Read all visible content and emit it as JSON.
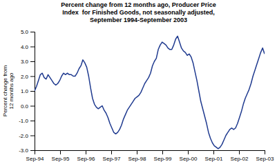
{
  "chart_data": {
    "type": "line",
    "title": "Percent change from 12 months ago, Producer Price\nIndex  for Finished Goods, not seasonally adjusted,\nSeptember 1994-September 2003",
    "ylabel": "Percent change from\n12 months ago",
    "color": "#1f3a8f",
    "xlim": [
      0,
      9
    ],
    "xticks": [
      {
        "value": 0,
        "label": "Sep-94"
      },
      {
        "value": 1,
        "label": "Sep-95"
      },
      {
        "value": 2,
        "label": "Sep-96"
      },
      {
        "value": 3,
        "label": "Sep-97"
      },
      {
        "value": 4,
        "label": "Sep-98"
      },
      {
        "value": 5,
        "label": "Sep-99"
      },
      {
        "value": 6,
        "label": "Sep-00"
      },
      {
        "value": 7,
        "label": "Sep-01"
      },
      {
        "value": 8,
        "label": "Sep-02"
      },
      {
        "value": 9,
        "label": "Sep-03"
      }
    ],
    "ylim": [
      -3.0,
      5.0
    ],
    "yticks": [
      {
        "value": -3.0,
        "label": "-3.0"
      },
      {
        "value": -2.0,
        "label": "-2.0"
      },
      {
        "value": -1.0,
        "label": "-1.0"
      },
      {
        "value": 0.0,
        "label": "0.0"
      },
      {
        "value": 1.0,
        "label": "1.0"
      },
      {
        "value": 2.0,
        "label": "2.0"
      },
      {
        "value": 3.0,
        "label": "3.0"
      },
      {
        "value": 4.0,
        "label": "4.0"
      },
      {
        "value": 5.0,
        "label": "5.0"
      }
    ],
    "x": [
      0,
      0.07563,
      0.151261,
      0.226891,
      0.302521,
      0.378151,
      0.453782,
      0.529412,
      0.605042,
      0.680672,
      0.756303,
      0.831933,
      0.907563,
      0.983193,
      1.058824,
      1.134454,
      1.210084,
      1.285714,
      1.361345,
      1.436975,
      1.512605,
      1.588235,
      1.663866,
      1.739496,
      1.815126,
      1.890756,
      1.966387,
      2.042017,
      2.117647,
      2.193277,
      2.268908,
      2.344538,
      2.420168,
      2.495798,
      2.571429,
      2.647059,
      2.722689,
      2.798319,
      2.87395,
      2.94958,
      3.02521,
      3.10084,
      3.176471,
      3.252101,
      3.327731,
      3.403361,
      3.478992,
      3.554622,
      3.630252,
      3.705882,
      3.781513,
      3.857143,
      3.932773,
      4.008403,
      4.084034,
      4.159664,
      4.235294,
      4.310924,
      4.386555,
      4.462185,
      4.537815,
      4.613445,
      4.689076,
      4.764706,
      4.840336,
      4.915966,
      4.991597,
      5.067227,
      5.142857,
      5.218487,
      5.294118,
      5.369748,
      5.445378,
      5.521008,
      5.596639,
      5.672269,
      5.747899,
      5.823529,
      5.89916,
      5.97479,
      6.05042,
      6.12605,
      6.201681,
      6.277311,
      6.352941,
      6.428571,
      6.504202,
      6.579832,
      6.655462,
      6.731092,
      6.806723,
      6.882353,
      6.957983,
      7.033613,
      7.109244,
      7.184874,
      7.260504,
      7.336134,
      7.411765,
      7.487395,
      7.563025,
      7.638655,
      7.714286,
      7.789916,
      7.865546,
      7.941176,
      8.016807,
      8.092437,
      8.168067,
      8.243697,
      8.319328,
      8.394958,
      8.470588,
      8.546218,
      8.621849,
      8.697479,
      8.773109,
      8.848739,
      8.92437,
      9
    ],
    "values": [
      1.0,
      1.3,
      1.7,
      2.1,
      2.2,
      1.9,
      1.8,
      2.1,
      1.9,
      1.7,
      1.5,
      1.4,
      1.5,
      1.7,
      2.0,
      2.2,
      2.1,
      2.2,
      2.1,
      2.1,
      2.0,
      2.0,
      2.2,
      2.5,
      2.7,
      3.1,
      2.9,
      2.6,
      2.0,
      1.2,
      0.5,
      0.1,
      -0.1,
      -0.2,
      -0.1,
      0.0,
      -0.3,
      -0.5,
      -0.8,
      -1.2,
      -1.5,
      -1.8,
      -1.9,
      -1.8,
      -1.6,
      -1.3,
      -0.9,
      -0.6,
      -0.3,
      -0.1,
      0.1,
      0.3,
      0.5,
      0.6,
      0.7,
      0.9,
      1.2,
      1.5,
      1.7,
      1.9,
      2.2,
      2.7,
      3.0,
      3.2,
      3.8,
      4.1,
      4.3,
      4.2,
      4.1,
      3.9,
      3.8,
      3.8,
      4.1,
      4.5,
      4.7,
      4.3,
      3.9,
      3.7,
      3.6,
      3.4,
      3.5,
      3.3,
      2.9,
      2.3,
      1.7,
      1.0,
      0.3,
      -0.2,
      -0.7,
      -1.2,
      -1.8,
      -2.2,
      -2.5,
      -2.7,
      -2.8,
      -2.9,
      -2.8,
      -2.6,
      -2.3,
      -2.0,
      -1.8,
      -1.6,
      -1.5,
      -1.6,
      -1.5,
      -1.2,
      -0.8,
      -0.4,
      0.1,
      0.5,
      0.8,
      1.1,
      1.5,
      2.0,
      2.4,
      2.8,
      3.2,
      3.6,
      3.9,
      3.5
    ]
  }
}
